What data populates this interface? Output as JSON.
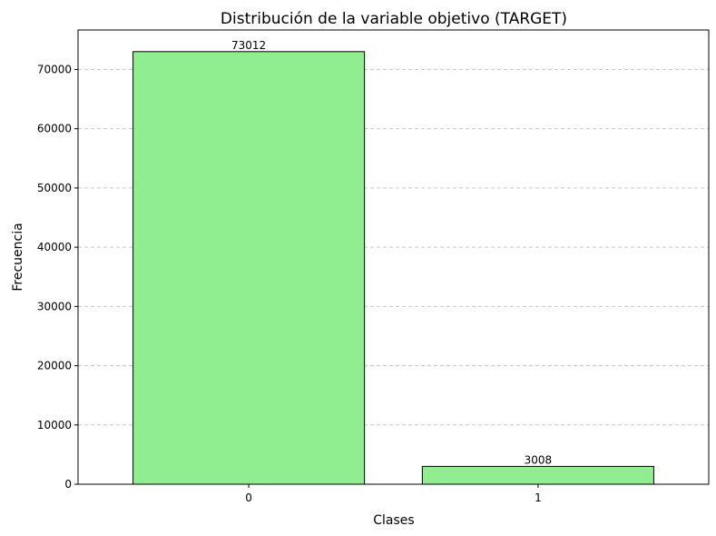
{
  "chart_data": {
    "type": "bar",
    "title": "Distribución de la variable objetivo (TARGET)",
    "xlabel": "Clases",
    "ylabel": "Frecuencia",
    "categories": [
      "0",
      "1"
    ],
    "values": [
      73012,
      3008
    ],
    "data_labels": [
      "73012",
      "3008"
    ],
    "ylim": [
      0,
      76663
    ],
    "yticks": [
      0,
      10000,
      20000,
      30000,
      40000,
      50000,
      60000,
      70000
    ],
    "ytick_labels": [
      "0",
      "10000",
      "20000",
      "30000",
      "40000",
      "50000",
      "60000",
      "70000"
    ],
    "grid": "y-dashed",
    "legend": "none",
    "colors": {
      "bar_fill": "#90ee90",
      "bar_edge": "#000000",
      "grid": "#c8c8c8"
    }
  }
}
